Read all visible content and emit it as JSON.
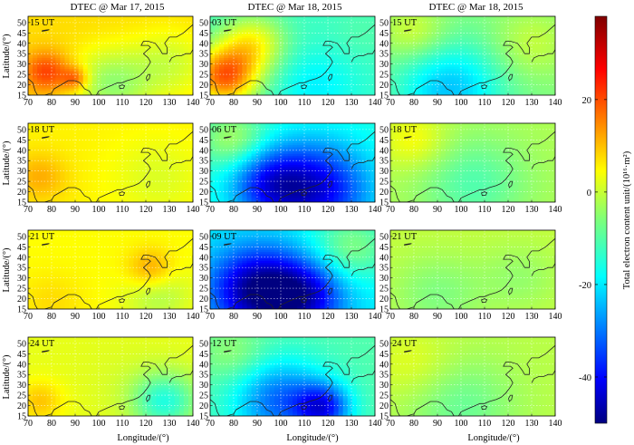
{
  "figure": {
    "column_titles": [
      "DTEC @ Mar 17, 2015",
      "DTEC @ Mar 18, 2015",
      "DTEC @ Mar 18, 2015"
    ],
    "time_labels": [
      [
        "15 UT",
        "18 UT",
        "21 UT",
        "24 UT"
      ],
      [
        "03 UT",
        "06 UT",
        "09 UT",
        "12 UT"
      ],
      [
        "15 UT",
        "18 UT",
        "21 UT",
        "24 UT"
      ]
    ],
    "xlabel": "Longitude/(°)",
    "ylabel": "Latitude/(°)",
    "colorbar_label": "Total electron content unit/(10¹⁶·m²)",
    "colorbar_ticks": [
      "20",
      "0",
      "-20",
      "-40"
    ]
  },
  "chart_data": {
    "type": "heatmap",
    "panel_grid": {
      "rows": 4,
      "cols": 3
    },
    "x_ticks": [
      70,
      80,
      90,
      100,
      110,
      120,
      130,
      140
    ],
    "y_ticks": [
      15,
      20,
      25,
      30,
      35,
      40,
      45,
      50
    ],
    "xlim": [
      70,
      140
    ],
    "ylim": [
      15,
      53
    ],
    "colorbar_range": [
      -50,
      38
    ],
    "colorbar_ticks": [
      20,
      0,
      -20,
      -40
    ],
    "colormap": "jet",
    "grid": true,
    "panels": [
      {
        "col": 0,
        "row": 0,
        "time": "15 UT",
        "base": 8,
        "features": [
          {
            "lon": 78,
            "lat": 26,
            "value": 22,
            "width": 7
          },
          {
            "lon": 90,
            "lat": 23,
            "value": 20,
            "width": 4
          },
          {
            "lon": 105,
            "lat": 20,
            "value": -4,
            "width": 12
          },
          {
            "lon": 130,
            "lat": 30,
            "value": 1,
            "width": 12
          }
        ]
      },
      {
        "col": 0,
        "row": 1,
        "time": "18 UT",
        "base": 6,
        "features": [
          {
            "lon": 75,
            "lat": 27,
            "value": 12,
            "width": 8
          },
          {
            "lon": 125,
            "lat": 27,
            "value": 2,
            "width": 14
          }
        ]
      },
      {
        "col": 0,
        "row": 2,
        "time": "21 UT",
        "base": 5,
        "features": [
          {
            "lon": 122,
            "lat": 34,
            "value": 14,
            "width": 7
          },
          {
            "lon": 80,
            "lat": 18,
            "value": 8,
            "width": 10
          },
          {
            "lon": 125,
            "lat": 22,
            "value": -2,
            "width": 10
          }
        ]
      },
      {
        "col": 0,
        "row": 3,
        "time": "24 UT",
        "base": 3,
        "features": [
          {
            "lon": 75,
            "lat": 22,
            "value": 10,
            "width": 7
          },
          {
            "lon": 128,
            "lat": 22,
            "value": -14,
            "width": 10
          },
          {
            "lon": 110,
            "lat": 32,
            "value": 2,
            "width": 14
          }
        ]
      },
      {
        "col": 1,
        "row": 0,
        "time": "03 UT",
        "base": -12,
        "features": [
          {
            "lon": 76,
            "lat": 24,
            "value": 18,
            "width": 10
          },
          {
            "lon": 88,
            "lat": 40,
            "value": 4,
            "width": 10
          },
          {
            "lon": 115,
            "lat": 20,
            "value": -18,
            "width": 12
          },
          {
            "lon": 135,
            "lat": 45,
            "value": -10,
            "width": 10
          }
        ]
      },
      {
        "col": 1,
        "row": 1,
        "time": "06 UT",
        "base": -14,
        "features": [
          {
            "lon": 115,
            "lat": 21,
            "value": -40,
            "width": 16
          },
          {
            "lon": 95,
            "lat": 24,
            "value": -32,
            "width": 12
          },
          {
            "lon": 80,
            "lat": 45,
            "value": -2,
            "width": 10
          }
        ]
      },
      {
        "col": 1,
        "row": 2,
        "time": "09 UT",
        "base": -18,
        "features": [
          {
            "lon": 90,
            "lat": 24,
            "value": -48,
            "width": 14
          },
          {
            "lon": 110,
            "lat": 21,
            "value": -40,
            "width": 12
          },
          {
            "lon": 130,
            "lat": 45,
            "value": -6,
            "width": 12
          }
        ]
      },
      {
        "col": 1,
        "row": 3,
        "time": "12 UT",
        "base": -10,
        "features": [
          {
            "lon": 100,
            "lat": 22,
            "value": -30,
            "width": 14
          },
          {
            "lon": 118,
            "lat": 19,
            "value": -34,
            "width": 8
          },
          {
            "lon": 80,
            "lat": 45,
            "value": -4,
            "width": 10
          }
        ]
      },
      {
        "col": 2,
        "row": 0,
        "time": "15 UT",
        "base": -6,
        "features": [
          {
            "lon": 95,
            "lat": 18,
            "value": -22,
            "width": 16
          },
          {
            "lon": 80,
            "lat": 45,
            "value": 2,
            "width": 10
          },
          {
            "lon": 130,
            "lat": 40,
            "value": 0,
            "width": 12
          }
        ]
      },
      {
        "col": 2,
        "row": 1,
        "time": "18 UT",
        "base": -2,
        "features": [
          {
            "lon": 105,
            "lat": 24,
            "value": -10,
            "width": 16
          },
          {
            "lon": 80,
            "lat": 45,
            "value": 5,
            "width": 10
          }
        ]
      },
      {
        "col": 2,
        "row": 2,
        "time": "21 UT",
        "base": 0,
        "features": [
          {
            "lon": 90,
            "lat": 22,
            "value": -6,
            "width": 14
          },
          {
            "lon": 125,
            "lat": 30,
            "value": -4,
            "width": 12
          }
        ]
      },
      {
        "col": 2,
        "row": 3,
        "time": "24 UT",
        "base": -1,
        "features": [
          {
            "lon": 100,
            "lat": 20,
            "value": -8,
            "width": 16
          },
          {
            "lon": 80,
            "lat": 40,
            "value": 3,
            "width": 12
          }
        ]
      }
    ]
  }
}
